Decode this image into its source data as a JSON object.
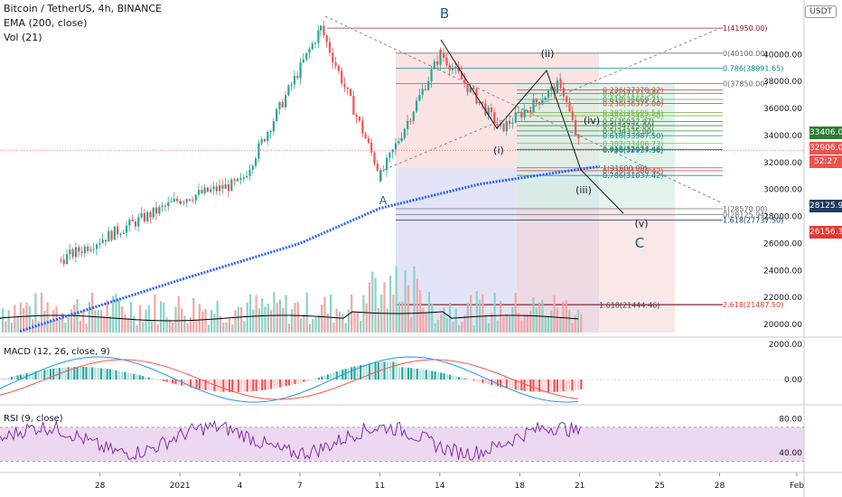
{
  "header": {
    "symbol_line": "Bitcoin / TetherUS, 4h, BINANCE",
    "ema_label": "EMA (200, close)",
    "vol_label": "Vol (21)",
    "currency_button": "USDT"
  },
  "panes": {
    "macd_label": "MACD (12, 26, close, 9)",
    "rsi_label": "RSI (9, close)"
  },
  "axis": {
    "price_ticks": [
      "40000.00",
      "38000.00",
      "36000.00",
      "34000.00",
      "32000.00",
      "30000.00",
      "28000.00",
      "26000.00",
      "24000.00",
      "22000.00",
      "20000.00"
    ],
    "macd_ticks": [
      "2000.00",
      "0.00"
    ],
    "rsi_ticks": [
      "80.00",
      "40.00"
    ],
    "time_ticks": [
      "28",
      "2021",
      "4",
      "7",
      "11",
      "14",
      "18",
      "21",
      "25",
      "28",
      "Feb"
    ]
  },
  "price_tags": [
    {
      "text": "33406.00",
      "color": "#2e7d32"
    },
    {
      "text": "32906.00",
      "color": "#ef5350"
    },
    {
      "text": "52:27",
      "color": "#ef5350"
    },
    {
      "text": "28125.94",
      "color": "#1e3a5f"
    },
    {
      "text": "26156.30",
      "color": "#e53935"
    }
  ],
  "wave_labels": [
    "B",
    "(ii)",
    "(i)",
    "(iii)",
    "(iv)",
    "(v)",
    "C",
    "A"
  ],
  "fib_labels": [
    {
      "text": "1(41950.00)",
      "price": 41950,
      "color": "#8b1a1a"
    },
    {
      "text": "0(40100.00)",
      "price": 40100,
      "color": "#666666"
    },
    {
      "text": "0.786(38991.65)",
      "price": 38991.65,
      "color": "#00838f"
    },
    {
      "text": "0(37850.00)",
      "price": 37850,
      "color": "#666666"
    },
    {
      "text": "0.236(37378.92)",
      "price": 37378.92,
      "color": "#e53935"
    },
    {
      "text": "0.65(37111.58)",
      "price": 37111.58,
      "color": "#43a047"
    },
    {
      "text": "0.618(36669.21)",
      "price": 36669.21,
      "color": "#43a047"
    },
    {
      "text": "0.236(36375.00)",
      "price": 36375,
      "color": "#e53935"
    },
    {
      "text": "0.382(35695.54)",
      "price": 35695.54,
      "color": "#7cb342"
    },
    {
      "text": "0.382(35462.50)",
      "price": 35462.5,
      "color": "#7cb342"
    },
    {
      "text": "0.5(35037.97)",
      "price": 35037.97,
      "color": "#2e7d32"
    },
    {
      "text": "0.5(34725.00)",
      "price": 34725,
      "color": "#2e7d32"
    },
    {
      "text": "0.5(34335.00)",
      "price": 34335,
      "color": "#2e7d32"
    },
    {
      "text": "0.618(33987.50)",
      "price": 33987.5,
      "color": "#00897b"
    },
    {
      "text": "0.382(33406.73)",
      "price": 33406.73,
      "color": "#7cb342"
    },
    {
      "text": "0.618(32974.46)",
      "price": 32974.46,
      "color": "#00897b"
    },
    {
      "text": "0.786(32937.50)",
      "price": 32937.5,
      "color": "#00838f"
    },
    {
      "text": "1(31600.00)",
      "price": 31600,
      "color": "#666666"
    },
    {
      "text": "0.236(31388.42)",
      "price": 31388.42,
      "color": "#e53935"
    },
    {
      "text": "0.786(31037.42)",
      "price": 31037.42,
      "color": "#00838f"
    },
    {
      "text": "0(28125.94)",
      "price": 28125.94,
      "color": "#666666"
    },
    {
      "text": "1(28570.00)",
      "price": 28570,
      "color": "#666666"
    },
    {
      "text": "1.618(27737.50)",
      "price": 27737.5,
      "color": "#1e3a5f"
    },
    {
      "text": "1.618(21444.46)",
      "price": 21444.46,
      "color": "#1e3a5f"
    },
    {
      "text": "2.618(21487.50)",
      "price": 21487.5,
      "color": "#e53935"
    }
  ],
  "chart_data": {
    "type": "candlestick",
    "symbol": "BTCUSDT",
    "interval": "4h",
    "y_range": [
      19400,
      43500
    ],
    "key_points": [
      {
        "date": "2020-12-26",
        "price": 24800
      },
      {
        "date": "2021-01-01",
        "price": 29300
      },
      {
        "date": "2021-01-04",
        "price": 30500
      },
      {
        "date": "2021-01-08",
        "price": 41950
      },
      {
        "date": "2021-01-11",
        "price": 31000
      },
      {
        "date": "2021-01-14",
        "price": 40100
      },
      {
        "date": "2021-01-17",
        "price": 34500
      },
      {
        "date": "2021-01-20",
        "price": 37850
      },
      {
        "date": "2021-01-21",
        "price": 32906
      }
    ],
    "ema200": [
      {
        "date": "2020-12-24",
        "price": 19500
      },
      {
        "date": "2021-01-01",
        "price": 23300
      },
      {
        "date": "2021-01-07",
        "price": 26000
      },
      {
        "date": "2021-01-11",
        "price": 28600
      },
      {
        "date": "2021-01-16",
        "price": 30400
      },
      {
        "date": "2021-01-21",
        "price": 31500
      },
      {
        "date": "2021-01-22",
        "price": 31700
      }
    ],
    "last_price": 32906.0,
    "macd_range": [
      -1200,
      2000
    ],
    "rsi_range": [
      20,
      90
    ],
    "rsi_band": [
      30,
      70
    ]
  },
  "colors": {
    "up": "#26a69a",
    "down": "#ef5350",
    "ema": "#2962ff",
    "macd": "#2196f3",
    "signal": "#ff5252",
    "rsi": "#7b1fa2",
    "rsi_band": "#e1bee7"
  }
}
